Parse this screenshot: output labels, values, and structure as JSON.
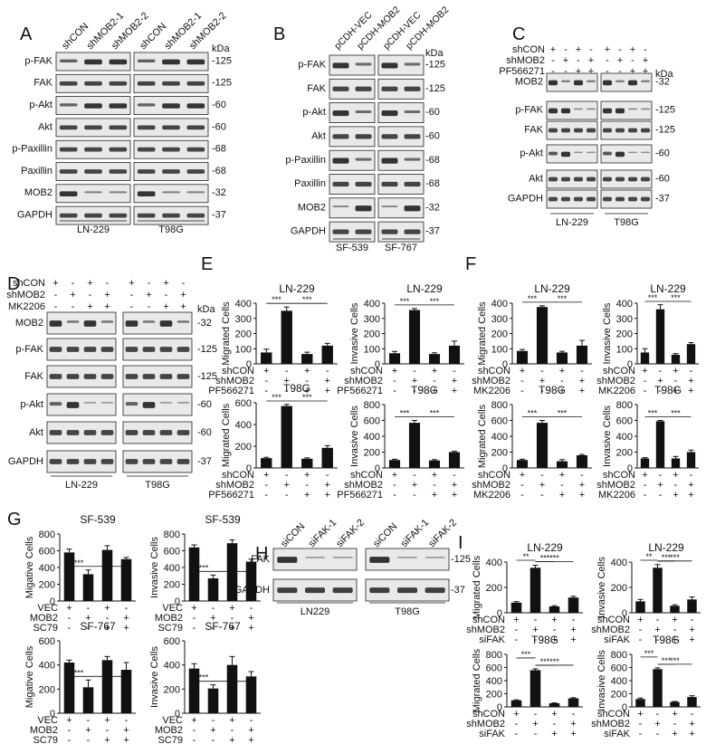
{
  "panels": {
    "A": {
      "letter": "A",
      "lanes": [
        "shCON",
        "shMOB2-1",
        "shMOB2-2",
        "shCON",
        "shMOB2-1",
        "shMOB2-2"
      ],
      "kda_label": "kDa",
      "rows": [
        "p-FAK",
        "FAK",
        "p-Akt",
        "Akt",
        "p-Paxillin",
        "Paxillin",
        "MOB2",
        "GAPDH"
      ],
      "kda": [
        "-125",
        "-125",
        "-60",
        "-60",
        "-68",
        "-68",
        "-32",
        "-37"
      ],
      "cells": [
        "LN-229",
        "T98G"
      ]
    },
    "B": {
      "letter": "B",
      "lanes": [
        "pCDH-VEC",
        "pCDH-MOB2",
        "pCDH-VEC",
        "pCDH-MOB2"
      ],
      "kda_label": "kDa",
      "rows": [
        "p-FAK",
        "FAK",
        "p-Akt",
        "Akt",
        "p-Paxillin",
        "Paxillin",
        "MOB2",
        "GAPDH"
      ],
      "kda": [
        "-125",
        "-125",
        "-60",
        "-60",
        "-68",
        "-68",
        "-32",
        "-37"
      ],
      "cells": [
        "SF-539",
        "SF-767"
      ]
    },
    "C": {
      "letter": "C",
      "treat_labels": [
        "shCON",
        "shMOB2",
        "PF566271"
      ],
      "treat_signs": [
        [
          "+",
          "-",
          "+",
          "-",
          "+",
          "-",
          "+",
          "-"
        ],
        [
          "-",
          "+",
          "-",
          "+",
          "-",
          "+",
          "-",
          "+"
        ],
        [
          "-",
          "-",
          "+",
          "+",
          "-",
          "-",
          "+",
          "+"
        ]
      ],
      "kda_label": "kDa",
      "rows": [
        "MOB2",
        "p-FAK",
        "FAK",
        "p-Akt",
        "Akt",
        "GAPDH"
      ],
      "kda": [
        "-32",
        "-125",
        "-125",
        "-60",
        "-60",
        "-37"
      ],
      "cells": [
        "LN-229",
        "T98G"
      ]
    },
    "D": {
      "letter": "D",
      "treat_labels": [
        "shCON",
        "shMOB2",
        "MK2206"
      ],
      "treat_signs": [
        [
          "+",
          "-",
          "+",
          "-",
          "+",
          "-",
          "+",
          "-"
        ],
        [
          "-",
          "+",
          "-",
          "+",
          "-",
          "+",
          "-",
          "+"
        ],
        [
          "-",
          "-",
          "+",
          "+",
          "-",
          "-",
          "+",
          "+"
        ]
      ],
      "kda_label": "kDa",
      "rows": [
        "MOB2",
        "p-FAK",
        "FAK",
        "p-Akt",
        "Akt",
        "GAPDH"
      ],
      "kda": [
        "-32",
        "-125",
        "-125",
        "-60",
        "-60",
        "-37"
      ],
      "cells": [
        "LN-229",
        "T98G"
      ]
    },
    "E": {
      "letter": "E"
    },
    "F": {
      "letter": "F"
    },
    "G": {
      "letter": "G"
    },
    "H": {
      "letter": "H",
      "lanes": [
        "siCON",
        "siFAK-1",
        "siFAK-2",
        "siCON",
        "siFAK-1",
        "siFAK-2"
      ],
      "rows": [
        "FAK",
        "GAPDH"
      ],
      "kda": [
        "-125",
        "-37"
      ],
      "cells": [
        "LN229",
        "T98G"
      ]
    },
    "I": {
      "letter": "I"
    }
  },
  "chart_data": [
    {
      "panel": "E",
      "type": "bar",
      "title": "LN-229",
      "ylabel": "Migrated Cells",
      "ylim": [
        0,
        400
      ],
      "yticks": [
        "0",
        "100",
        "200",
        "300",
        "400"
      ],
      "values": [
        75,
        350,
        65,
        120
      ],
      "errors": [
        22,
        25,
        12,
        15
      ],
      "sig": [
        "***",
        "***"
      ],
      "treat_labels": [
        "shCON",
        "shMOB2",
        "PF566271"
      ],
      "treat_signs": [
        [
          "+",
          "-",
          "+",
          "-"
        ],
        [
          "-",
          "+",
          "-",
          "+"
        ],
        [
          "-",
          "-",
          "+",
          "+"
        ]
      ]
    },
    {
      "panel": "E",
      "type": "bar",
      "title": "LN-229",
      "ylabel": "Invasive Cells",
      "ylim": [
        0,
        400
      ],
      "yticks": [
        "0",
        "100",
        "200",
        "300",
        "400"
      ],
      "values": [
        70,
        355,
        65,
        120
      ],
      "errors": [
        12,
        10,
        8,
        30
      ],
      "sig": [
        "***",
        "***"
      ],
      "treat_labels": [
        "shCON",
        "shMOB2",
        "PF566271"
      ],
      "treat_signs": [
        [
          "+",
          "-",
          "+",
          "-"
        ],
        [
          "-",
          "+",
          "-",
          "+"
        ],
        [
          "-",
          "-",
          "+",
          "+"
        ]
      ]
    },
    {
      "panel": "E",
      "type": "bar",
      "title": "T98G",
      "ylabel": "Migrated Cells",
      "ylim": [
        0,
        600
      ],
      "yticks": [
        "0",
        "200",
        "400",
        "600"
      ],
      "values": [
        90,
        570,
        85,
        185
      ],
      "errors": [
        8,
        15,
        8,
        20
      ],
      "sig": [
        "***",
        "***"
      ],
      "treat_labels": [
        "shCON",
        "shMOB2",
        "PF566271"
      ],
      "treat_signs": [
        [
          "+",
          "-",
          "+",
          "-"
        ],
        [
          "-",
          "+",
          "-",
          "+"
        ],
        [
          "-",
          "-",
          "+",
          "+"
        ]
      ]
    },
    {
      "panel": "E",
      "type": "bar",
      "title": "T98G",
      "ylabel": "Invasive Cells",
      "ylim": [
        0,
        800
      ],
      "yticks": [
        "0",
        "200",
        "400",
        "600",
        "800"
      ],
      "values": [
        100,
        570,
        95,
        200
      ],
      "errors": [
        10,
        30,
        10,
        10
      ],
      "sig": [
        "***",
        "***"
      ],
      "treat_labels": [
        "shCON",
        "shMOB2",
        "PF566271"
      ],
      "treat_signs": [
        [
          "+",
          "-",
          "+",
          "-"
        ],
        [
          "-",
          "+",
          "-",
          "+"
        ],
        [
          "-",
          "-",
          "+",
          "+"
        ]
      ]
    },
    {
      "panel": "F",
      "type": "bar",
      "title": "LN-229",
      "ylabel": "Migrated Cells",
      "ylim": [
        0,
        400
      ],
      "yticks": [
        "0",
        "100",
        "200",
        "300",
        "400"
      ],
      "values": [
        85,
        375,
        75,
        120
      ],
      "errors": [
        10,
        8,
        8,
        35
      ],
      "sig": [
        "***",
        "***"
      ],
      "treat_labels": [
        "shCON",
        "shMOB2",
        "MK2206"
      ],
      "treat_signs": [
        [
          "+",
          "-",
          "+",
          "-"
        ],
        [
          "-",
          "+",
          "-",
          "+"
        ],
        [
          "-",
          "-",
          "+",
          "+"
        ]
      ]
    },
    {
      "panel": "F",
      "type": "bar",
      "title": "LN-229",
      "ylabel": "Invasive Cells",
      "ylim": [
        0,
        400
      ],
      "yticks": [
        "0",
        "100",
        "200",
        "300",
        "400"
      ],
      "values": [
        75,
        360,
        60,
        130
      ],
      "errors": [
        25,
        30,
        8,
        10
      ],
      "sig": [
        "***",
        "***"
      ],
      "treat_labels": [
        "shCON",
        "shMOB2",
        "MK2206"
      ],
      "treat_signs": [
        [
          "+",
          "-",
          "+",
          "-"
        ],
        [
          "-",
          "+",
          "-",
          "+"
        ],
        [
          "-",
          "-",
          "+",
          "+"
        ]
      ]
    },
    {
      "panel": "F",
      "type": "bar",
      "title": "T98G",
      "ylabel": "Migrated Cells",
      "ylim": [
        0,
        800
      ],
      "yticks": [
        "0",
        "200",
        "400",
        "600",
        "800"
      ],
      "values": [
        100,
        570,
        85,
        160
      ],
      "errors": [
        10,
        30,
        20,
        10
      ],
      "sig": [
        "***",
        "***"
      ],
      "treat_labels": [
        "shCON",
        "shMOB2",
        "MK2206"
      ],
      "treat_signs": [
        [
          "+",
          "-",
          "+",
          "-"
        ],
        [
          "-",
          "+",
          "-",
          "+"
        ],
        [
          "-",
          "-",
          "+",
          "+"
        ]
      ]
    },
    {
      "panel": "F",
      "type": "bar",
      "title": "T98G",
      "ylabel": "Invasive Cells",
      "ylim": [
        0,
        800
      ],
      "yticks": [
        "0",
        "200",
        "400",
        "600",
        "800"
      ],
      "values": [
        120,
        590,
        120,
        200
      ],
      "errors": [
        10,
        10,
        25,
        25
      ],
      "sig": [
        "***",
        "***"
      ],
      "treat_labels": [
        "shCON",
        "shMOB2",
        "MK2206"
      ],
      "treat_signs": [
        [
          "+",
          "-",
          "+",
          "-"
        ],
        [
          "-",
          "+",
          "-",
          "+"
        ],
        [
          "-",
          "-",
          "+",
          "+"
        ]
      ]
    },
    {
      "panel": "G",
      "type": "bar",
      "title": "SF-539",
      "ylabel": "Migative Cells",
      "ylim": [
        0,
        800
      ],
      "yticks": [
        "0",
        "200",
        "400",
        "600",
        "800"
      ],
      "values": [
        580,
        320,
        610,
        500
      ],
      "errors": [
        40,
        50,
        50,
        20
      ],
      "sig": [
        "***",
        "**"
      ],
      "treat_labels": [
        "VEC",
        "MOB2",
        "SC79"
      ],
      "treat_signs": [
        [
          "+",
          "-",
          "+",
          "-"
        ],
        [
          "-",
          "+",
          "-",
          "+"
        ],
        [
          "-",
          "-",
          "+",
          "+"
        ]
      ]
    },
    {
      "panel": "G",
      "type": "bar",
      "title": "SF-539",
      "ylabel": "Invasive Cells",
      "ylim": [
        0,
        800
      ],
      "yticks": [
        "0",
        "200",
        "400",
        "600",
        "800"
      ],
      "values": [
        640,
        270,
        690,
        470
      ],
      "errors": [
        30,
        40,
        40,
        30
      ],
      "sig": [
        "***",
        "**"
      ],
      "treat_labels": [
        "VEC",
        "MOB2",
        "SC79"
      ],
      "treat_signs": [
        [
          "+",
          "-",
          "+",
          "-"
        ],
        [
          "-",
          "+",
          "-",
          "+"
        ],
        [
          "-",
          "-",
          "+",
          "+"
        ]
      ]
    },
    {
      "panel": "G",
      "type": "bar",
      "title": "SF-767",
      "ylabel": "Migative Cells",
      "ylim": [
        0,
        600
      ],
      "yticks": [
        "0",
        "200",
        "400",
        "600"
      ],
      "values": [
        420,
        215,
        440,
        360
      ],
      "errors": [
        20,
        60,
        30,
        60
      ],
      "sig": [
        "***",
        "*"
      ],
      "treat_labels": [
        "VEC",
        "MOB2",
        "SC79"
      ],
      "treat_signs": [
        [
          "+",
          "-",
          "+",
          "-"
        ],
        [
          "-",
          "+",
          "-",
          "+"
        ],
        [
          "-",
          "-",
          "+",
          "+"
        ]
      ]
    },
    {
      "panel": "G",
      "type": "bar",
      "title": "SF-767",
      "ylabel": "Invasive Cells",
      "ylim": [
        0,
        600
      ],
      "yticks": [
        "0",
        "200",
        "400",
        "600"
      ],
      "values": [
        370,
        205,
        400,
        305
      ],
      "errors": [
        40,
        30,
        70,
        40
      ],
      "sig": [
        "***",
        "*"
      ],
      "treat_labels": [
        "VEC",
        "MOB2",
        "SC79"
      ],
      "treat_signs": [
        [
          "+",
          "-",
          "+",
          "-"
        ],
        [
          "-",
          "+",
          "-",
          "+"
        ],
        [
          "-",
          "-",
          "+",
          "+"
        ]
      ]
    },
    {
      "panel": "I",
      "type": "bar",
      "title": "LN-229",
      "ylabel": "Migrated Cells",
      "ylim": [
        0,
        400
      ],
      "yticks": [
        "0",
        "200",
        "400"
      ],
      "values": [
        80,
        355,
        50,
        120
      ],
      "errors": [
        8,
        20,
        6,
        10
      ],
      "sig": [
        "**",
        "***",
        "***"
      ],
      "treat_labels": [
        "shCON",
        "shMOB2",
        "siFAK"
      ],
      "treat_signs": [
        [
          "+",
          "-",
          "+",
          "-"
        ],
        [
          "-",
          "+",
          "-",
          "+"
        ],
        [
          "-",
          "-",
          "+",
          "+"
        ]
      ]
    },
    {
      "panel": "I",
      "type": "bar",
      "title": "LN-229",
      "ylabel": "Invasive Cells",
      "ylim": [
        0,
        400
      ],
      "yticks": [
        "0",
        "200",
        "400"
      ],
      "values": [
        90,
        355,
        55,
        105
      ],
      "errors": [
        15,
        25,
        8,
        20
      ],
      "sig": [
        "**",
        "***",
        "***"
      ],
      "treat_labels": [
        "shCON",
        "shMOB2",
        "siFAK"
      ],
      "treat_signs": [
        [
          "+",
          "-",
          "+",
          "-"
        ],
        [
          "-",
          "+",
          "-",
          "+"
        ],
        [
          "-",
          "-",
          "+",
          "+"
        ]
      ]
    },
    {
      "panel": "I",
      "type": "bar",
      "title": "T98G",
      "ylabel": "Migrated Cells",
      "ylim": [
        0,
        800
      ],
      "yticks": [
        "0",
        "200",
        "400",
        "600",
        "800"
      ],
      "values": [
        100,
        560,
        55,
        130
      ],
      "errors": [
        8,
        20,
        6,
        10
      ],
      "sig": [
        "***",
        "***",
        "***"
      ],
      "treat_labels": [
        "shCON",
        "shMOB2",
        "siFAK"
      ],
      "treat_signs": [
        [
          "+",
          "-",
          "+",
          "-"
        ],
        [
          "-",
          "+",
          "-",
          "+"
        ],
        [
          "-",
          "-",
          "+",
          "+"
        ]
      ]
    },
    {
      "panel": "I",
      "type": "bar",
      "title": "T98G",
      "ylabel": "Invasive Cells",
      "ylim": [
        0,
        800
      ],
      "yticks": [
        "0",
        "200",
        "400",
        "600",
        "800"
      ],
      "values": [
        120,
        575,
        75,
        150
      ],
      "errors": [
        15,
        20,
        8,
        20
      ],
      "sig": [
        "***",
        "***",
        "***"
      ],
      "treat_labels": [
        "shCON",
        "shMOB2",
        "siFAK"
      ],
      "treat_signs": [
        [
          "+",
          "-",
          "+",
          "-"
        ],
        [
          "-",
          "+",
          "-",
          "+"
        ],
        [
          "-",
          "-",
          "+",
          "+"
        ]
      ]
    }
  ]
}
